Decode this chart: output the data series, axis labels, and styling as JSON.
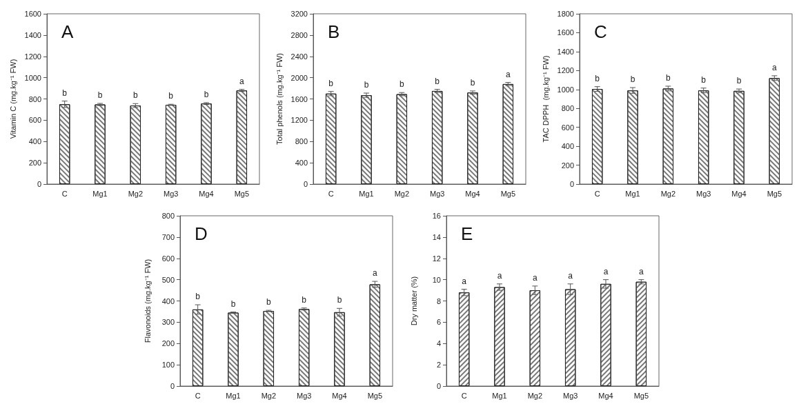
{
  "chart_data": [
    {
      "type": "bar",
      "title": "A",
      "ylabel": "Vitamin C (mg.kg⁻¹ FW)",
      "categories": [
        "C",
        "Mg1",
        "Mg2",
        "Mg3",
        "Mg4",
        "Mg5"
      ],
      "color": "#ffffff",
      "values": [
        750,
        748,
        738,
        745,
        757,
        880
      ],
      "errors": [
        30,
        10,
        18,
        5,
        8,
        10
      ],
      "ylim": [
        0,
        1600
      ],
      "yticks": [
        0,
        200,
        400,
        600,
        800,
        1000,
        1200,
        1400,
        1600
      ],
      "grid": false,
      "annotations": [
        "b",
        "b",
        "b",
        "b",
        "b",
        "a"
      ]
    },
    {
      "type": "bar",
      "title": "B",
      "ylabel": "Total phenols (mg.kg⁻¹ FW)",
      "categories": [
        "C",
        "Mg1",
        "Mg2",
        "Mg3",
        "Mg4",
        "Mg5"
      ],
      "color": "#ffffff",
      "values": [
        1700,
        1670,
        1690,
        1750,
        1720,
        1880
      ],
      "errors": [
        40,
        40,
        30,
        30,
        30,
        30
      ],
      "ylim": [
        0,
        3200
      ],
      "yticks": [
        0,
        400,
        800,
        1200,
        1600,
        2000,
        2400,
        2800,
        3200
      ],
      "grid": false,
      "annotations": [
        "b",
        "b",
        "b",
        "b",
        "b",
        "a"
      ]
    },
    {
      "type": "bar",
      "title": "C",
      "ylabel": "TAC DPPH  (mg.kg⁻¹ FW)",
      "categories": [
        "C",
        "Mg1",
        "Mg2",
        "Mg3",
        "Mg4",
        "Mg5"
      ],
      "color": "#ffffff",
      "values": [
        1005,
        990,
        1010,
        990,
        985,
        1120
      ],
      "errors": [
        25,
        30,
        25,
        25,
        20,
        25
      ],
      "ylim": [
        0,
        1800
      ],
      "yticks": [
        0,
        200,
        400,
        600,
        800,
        1000,
        1200,
        1400,
        1600,
        1800
      ],
      "grid": false,
      "annotations": [
        "b",
        "b",
        "b",
        "b",
        "b",
        "a"
      ]
    },
    {
      "type": "bar",
      "title": "D",
      "ylabel": "Flavonoids (mg.kg⁻¹ FW)",
      "categories": [
        "C",
        "Mg1",
        "Mg2",
        "Mg3",
        "Mg4",
        "Mg5"
      ],
      "color": "#ffffff",
      "values": [
        360,
        345,
        353,
        362,
        347,
        478
      ],
      "errors": [
        22,
        3,
        3,
        5,
        18,
        14
      ],
      "ylim": [
        0,
        800
      ],
      "yticks": [
        0,
        100,
        200,
        300,
        400,
        500,
        600,
        700,
        800
      ],
      "grid": false,
      "annotations": [
        "b",
        "b",
        "b",
        "b",
        "b",
        "a"
      ]
    },
    {
      "type": "bar",
      "title": "E",
      "ylabel": "Dry matter (%)",
      "categories": [
        "C",
        "Mg1",
        "Mg2",
        "Mg3",
        "Mg4",
        "Mg5"
      ],
      "color": "#ffffff",
      "values": [
        8.8,
        9.3,
        9.0,
        9.1,
        9.6,
        9.8
      ],
      "errors": [
        0.3,
        0.3,
        0.4,
        0.5,
        0.4,
        0.2
      ],
      "ylim": [
        0,
        16
      ],
      "yticks": [
        0,
        2,
        4,
        6,
        8,
        10,
        12,
        14,
        16
      ],
      "grid": false,
      "annotations": [
        "a",
        "a",
        "a",
        "a",
        "a",
        "a"
      ]
    }
  ]
}
